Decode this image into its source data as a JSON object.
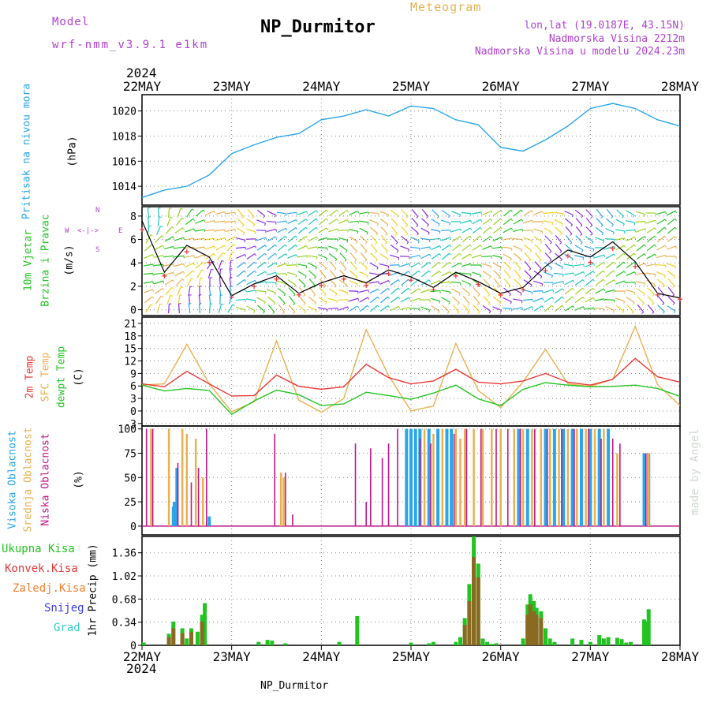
{
  "header": {
    "model_label": "Model",
    "model_name": "wrf-nmm_v3.9.1 e1km",
    "title": "NP_Durmitor",
    "product": "Meteogram",
    "lonlat": "lon,lat (19.0187E, 43.15N)",
    "elev_station": "Nadmorska Visina 2212m",
    "elev_model": "Nadmorska Visina u modelu 2024.23m",
    "year": "2024",
    "footer_station": "NP_Durmitor",
    "credit": "made by Angel"
  },
  "colors": {
    "purple": "#b040d0",
    "orange": "#e8b050",
    "cyan": "#2aa6e8",
    "green": "#22c422",
    "red": "#e83838",
    "magenta": "#c0168a",
    "blue": "#3b3be8",
    "teal": "#33cccc",
    "orange2": "#f08030"
  },
  "x_axis": {
    "ticks": [
      "22MAY",
      "23MAY",
      "24MAY",
      "25MAY",
      "26MAY",
      "27MAY",
      "28MAY"
    ],
    "tick_days": [
      0,
      1,
      2,
      3,
      4,
      5,
      6
    ]
  },
  "panels": {
    "pressure": {
      "label": "Pritisak na nivou mora",
      "unit": "(hPa)",
      "yticks": [
        "1014",
        "1016",
        "1018",
        "1020"
      ]
    },
    "wind": {
      "label1": "10m Vjetar",
      "label2": "Brzina i Pravac",
      "unit": "(m/s)",
      "yticks": [
        "0",
        "2",
        "4",
        "6",
        "8"
      ],
      "compass": {
        "n": "N",
        "s": "S",
        "e": "E",
        "w": "W",
        "arrows": "<-|->"
      }
    },
    "temp": {
      "label1": "2m Temp",
      "label2": "SFC Temp",
      "label3": "dewpt Temp",
      "unit": "(C)",
      "yticks": [
        "-3",
        "0",
        "3",
        "6",
        "9",
        "12",
        "15",
        "18",
        "21"
      ]
    },
    "cloud": {
      "label1": "Visoka Oblacnost",
      "label2": "Srednja Oblacnost",
      "label3": "Niska Oblacnost",
      "unit": "(%)",
      "yticks": [
        "0",
        "25",
        "50",
        "75",
        "100"
      ]
    },
    "precip": {
      "legend": [
        "Ukupna Kisa",
        "Konvek.Kisa",
        "Zaledj.Kisa",
        "Snijeg",
        "Grad"
      ],
      "unit": "1hr Precip (mm)",
      "yticks": [
        "0",
        "0.34",
        "0.68",
        "1.02",
        "1.36"
      ]
    }
  },
  "chart_data": [
    {
      "type": "line",
      "title": "Pritisak na nivou mora",
      "ylabel": "(hPa)",
      "x_unit": "days since 22MAY 00 UTC",
      "ylim": [
        1012.5,
        1021.3
      ],
      "series": [
        {
          "name": "Pritisak na nivou mora",
          "x": [
            0,
            0.25,
            0.5,
            0.75,
            1.0,
            1.25,
            1.5,
            1.75,
            2.0,
            2.25,
            2.5,
            2.75,
            3.0,
            3.25,
            3.5,
            3.75,
            4.0,
            4.25,
            4.5,
            4.75,
            5.0,
            5.25,
            5.5,
            5.75,
            6.0
          ],
          "y": [
            1013.1,
            1013.7,
            1014.0,
            1014.9,
            1016.6,
            1017.3,
            1017.9,
            1018.2,
            1019.3,
            1019.6,
            1020.1,
            1019.6,
            1020.4,
            1020.2,
            1019.3,
            1018.9,
            1017.1,
            1016.8,
            1017.7,
            1018.8,
            1020.2,
            1020.6,
            1020.2,
            1019.3,
            1018.8
          ]
        }
      ]
    },
    {
      "type": "line",
      "title": "10m Vjetar Brzina i Pravac",
      "ylabel": "(m/s)",
      "x_unit": "days since 22MAY 00 UTC",
      "ylim": [
        -0.5,
        8.8
      ],
      "series": [
        {
          "x": [
            0,
            0.25,
            0.5,
            0.75,
            1.0,
            1.25,
            1.5,
            1.75,
            2.0,
            2.25,
            2.5,
            2.75,
            3.0,
            3.25,
            3.5,
            3.75,
            4.0,
            4.25,
            4.5,
            4.75,
            5.0,
            5.25,
            5.5,
            5.75,
            6.0
          ],
          "y": [
            7.6,
            3.2,
            5.5,
            4.5,
            1.2,
            2.2,
            2.9,
            1.4,
            2.3,
            2.9,
            2.3,
            3.4,
            2.8,
            1.9,
            3.2,
            2.4,
            1.4,
            1.9,
            3.7,
            5.1,
            4.5,
            5.8,
            4.1,
            1.4,
            1.0
          ]
        }
      ]
    },
    {
      "type": "line",
      "title": "2m Temp / SFC Temp / dewpt Temp",
      "ylabel": "(C)",
      "x_unit": "days since 22MAY 00 UTC",
      "ylim": [
        -3.6,
        22.5
      ],
      "series": [
        {
          "name": "2m Temp",
          "x": [
            0,
            0.25,
            0.5,
            0.75,
            1.0,
            1.25,
            1.5,
            1.75,
            2.0,
            2.25,
            2.5,
            2.75,
            3.0,
            3.25,
            3.5,
            3.75,
            4.0,
            4.25,
            4.5,
            4.75,
            5.0,
            5.25,
            5.5,
            5.75,
            6.0
          ],
          "y": [
            6.5,
            5.8,
            9.5,
            6.5,
            3.6,
            3.7,
            8.6,
            5.9,
            5.2,
            5.8,
            11.2,
            8.0,
            6.5,
            7.2,
            10.0,
            6.9,
            6.5,
            7.2,
            9.0,
            6.9,
            6.2,
            7.6,
            12.6,
            8.2,
            6.9
          ]
        },
        {
          "name": "SFC Temp",
          "x": [
            0,
            0.25,
            0.5,
            0.75,
            1.0,
            1.25,
            1.5,
            1.75,
            2.0,
            2.25,
            2.5,
            2.75,
            3.0,
            3.25,
            3.5,
            3.75,
            4.0,
            4.25,
            4.5,
            4.75,
            5.0,
            5.25,
            5.5,
            5.75,
            6.0
          ],
          "y": [
            6.2,
            6.5,
            16.0,
            6.5,
            -0.2,
            2.2,
            16.8,
            2.6,
            -0.3,
            3.0,
            19.5,
            8.5,
            0.0,
            1.2,
            16.2,
            4.9,
            0.8,
            7.0,
            14.8,
            6.5,
            5.9,
            7.6,
            20.3,
            6.3,
            1.3
          ]
        },
        {
          "name": "dewpt Temp",
          "x": [
            0,
            0.25,
            0.5,
            0.75,
            1.0,
            1.25,
            1.5,
            1.75,
            2.0,
            2.25,
            2.5,
            2.75,
            3.0,
            3.25,
            3.5,
            3.75,
            4.0,
            4.25,
            4.5,
            4.75,
            5.0,
            5.25,
            5.5,
            5.75,
            6.0
          ],
          "y": [
            6.2,
            4.8,
            5.4,
            4.9,
            -0.8,
            2.4,
            5.0,
            3.9,
            1.3,
            1.7,
            4.5,
            3.7,
            2.8,
            4.3,
            6.2,
            2.9,
            1.3,
            5.2,
            6.8,
            6.2,
            5.8,
            5.9,
            6.2,
            5.4,
            3.5
          ]
        }
      ]
    },
    {
      "type": "bar",
      "title": "Oblacnost",
      "ylabel": "(%)",
      "x_unit": "days since 22MAY 00 UTC",
      "ylim": [
        0,
        100
      ],
      "series": [
        {
          "name": "Visoka Oblacnost",
          "x": [
            0.35,
            0.36,
            0.39,
            0.75,
            2.95,
            3.0,
            3.05,
            3.1,
            3.2,
            3.3,
            3.4,
            3.45,
            4.2,
            4.3,
            4.5,
            4.6,
            4.7,
            4.8,
            4.9,
            5.0,
            5.1,
            5.2,
            5.6,
            5.65
          ],
          "y": [
            20,
            25,
            60,
            10,
            100,
            100,
            100,
            100,
            100,
            100,
            100,
            100,
            100,
            100,
            100,
            100,
            100,
            100,
            100,
            100,
            100,
            100,
            75,
            75
          ]
        },
        {
          "name": "Srednja Oblacnost",
          "x": [
            0.1,
            0.3,
            0.45,
            0.5,
            0.6,
            0.68,
            1.55,
            1.58,
            3.15,
            3.25,
            3.35,
            3.5,
            3.55,
            3.6,
            3.7,
            3.8,
            3.9,
            4.0,
            4.15,
            4.25,
            4.35,
            4.45,
            4.55,
            4.65,
            4.75,
            4.85,
            4.95,
            5.05,
            5.15,
            5.3,
            5.65
          ],
          "y": [
            100,
            100,
            100,
            95,
            90,
            50,
            55,
            50,
            100,
            95,
            100,
            100,
            90,
            100,
            100,
            100,
            100,
            100,
            100,
            100,
            100,
            100,
            100,
            100,
            100,
            100,
            100,
            100,
            100,
            75,
            75
          ]
        },
        {
          "name": "Niska Oblacnost",
          "x": [
            0.05,
            0.12,
            0.4,
            0.55,
            0.63,
            0.72,
            1.48,
            1.6,
            1.68,
            2.38,
            2.5,
            2.55,
            2.68,
            2.75,
            2.85,
            3.1,
            3.22,
            3.48,
            3.62,
            3.78,
            3.95,
            4.08,
            4.22,
            4.38,
            4.52,
            4.68,
            4.82,
            4.98,
            5.12,
            5.25,
            5.33,
            5.62
          ],
          "y": [
            100,
            100,
            65,
            45,
            60,
            100,
            95,
            55,
            12,
            85,
            25,
            80,
            70,
            85,
            100,
            90,
            85,
            95,
            100,
            100,
            100,
            100,
            100,
            100,
            100,
            100,
            100,
            100,
            90,
            90,
            85,
            75
          ]
        }
      ]
    },
    {
      "type": "bar",
      "title": "1hr Precip",
      "ylabel": "1hr Precip (mm)",
      "x_unit": "days since 22MAY 00 UTC",
      "ylim": [
        0,
        1.6
      ],
      "series": [
        {
          "name": "Ukupna Kisa",
          "x": [
            0.02,
            0.3,
            0.35,
            0.45,
            0.5,
            0.55,
            0.62,
            0.67,
            0.7,
            1.3,
            1.4,
            1.45,
            1.6,
            2.2,
            2.4,
            3.0,
            3.2,
            3.25,
            3.5,
            3.55,
            3.6,
            3.65,
            3.7,
            3.75,
            3.8,
            3.85,
            3.9,
            3.95,
            4.25,
            4.3,
            4.33,
            4.37,
            4.4,
            4.45,
            4.5,
            4.55,
            4.6,
            4.8,
            4.9,
            5.0,
            5.1,
            5.15,
            5.2,
            5.3,
            5.35,
            5.4,
            5.45,
            5.6,
            5.62,
            5.65
          ],
          "y": [
            0.04,
            0.17,
            0.35,
            0.25,
            0.1,
            0.25,
            0.2,
            0.45,
            0.62,
            0.05,
            0.08,
            0.07,
            0.03,
            0.05,
            0.43,
            0.04,
            0.03,
            0.05,
            0.05,
            0.12,
            0.4,
            0.9,
            1.6,
            1.2,
            0.1,
            0.05,
            0.02,
            0.03,
            0.1,
            0.6,
            0.75,
            0.65,
            0.55,
            0.5,
            0.25,
            0.1,
            0.05,
            0.1,
            0.08,
            0.05,
            0.15,
            0.1,
            0.12,
            0.11,
            0.09,
            0.04,
            0.05,
            0.38,
            0.35,
            0.53
          ]
        },
        {
          "name": "Konvek.Kisa",
          "x": [
            0.3,
            0.35,
            0.45,
            0.55,
            0.67,
            3.6,
            3.65,
            3.7,
            3.75,
            4.3,
            4.33,
            4.37,
            4.4,
            4.45
          ],
          "y": [
            0.12,
            0.25,
            0.18,
            0.2,
            0.35,
            0.3,
            0.65,
            1.3,
            1.0,
            0.45,
            0.6,
            0.5,
            0.45,
            0.4
          ]
        }
      ]
    }
  ]
}
